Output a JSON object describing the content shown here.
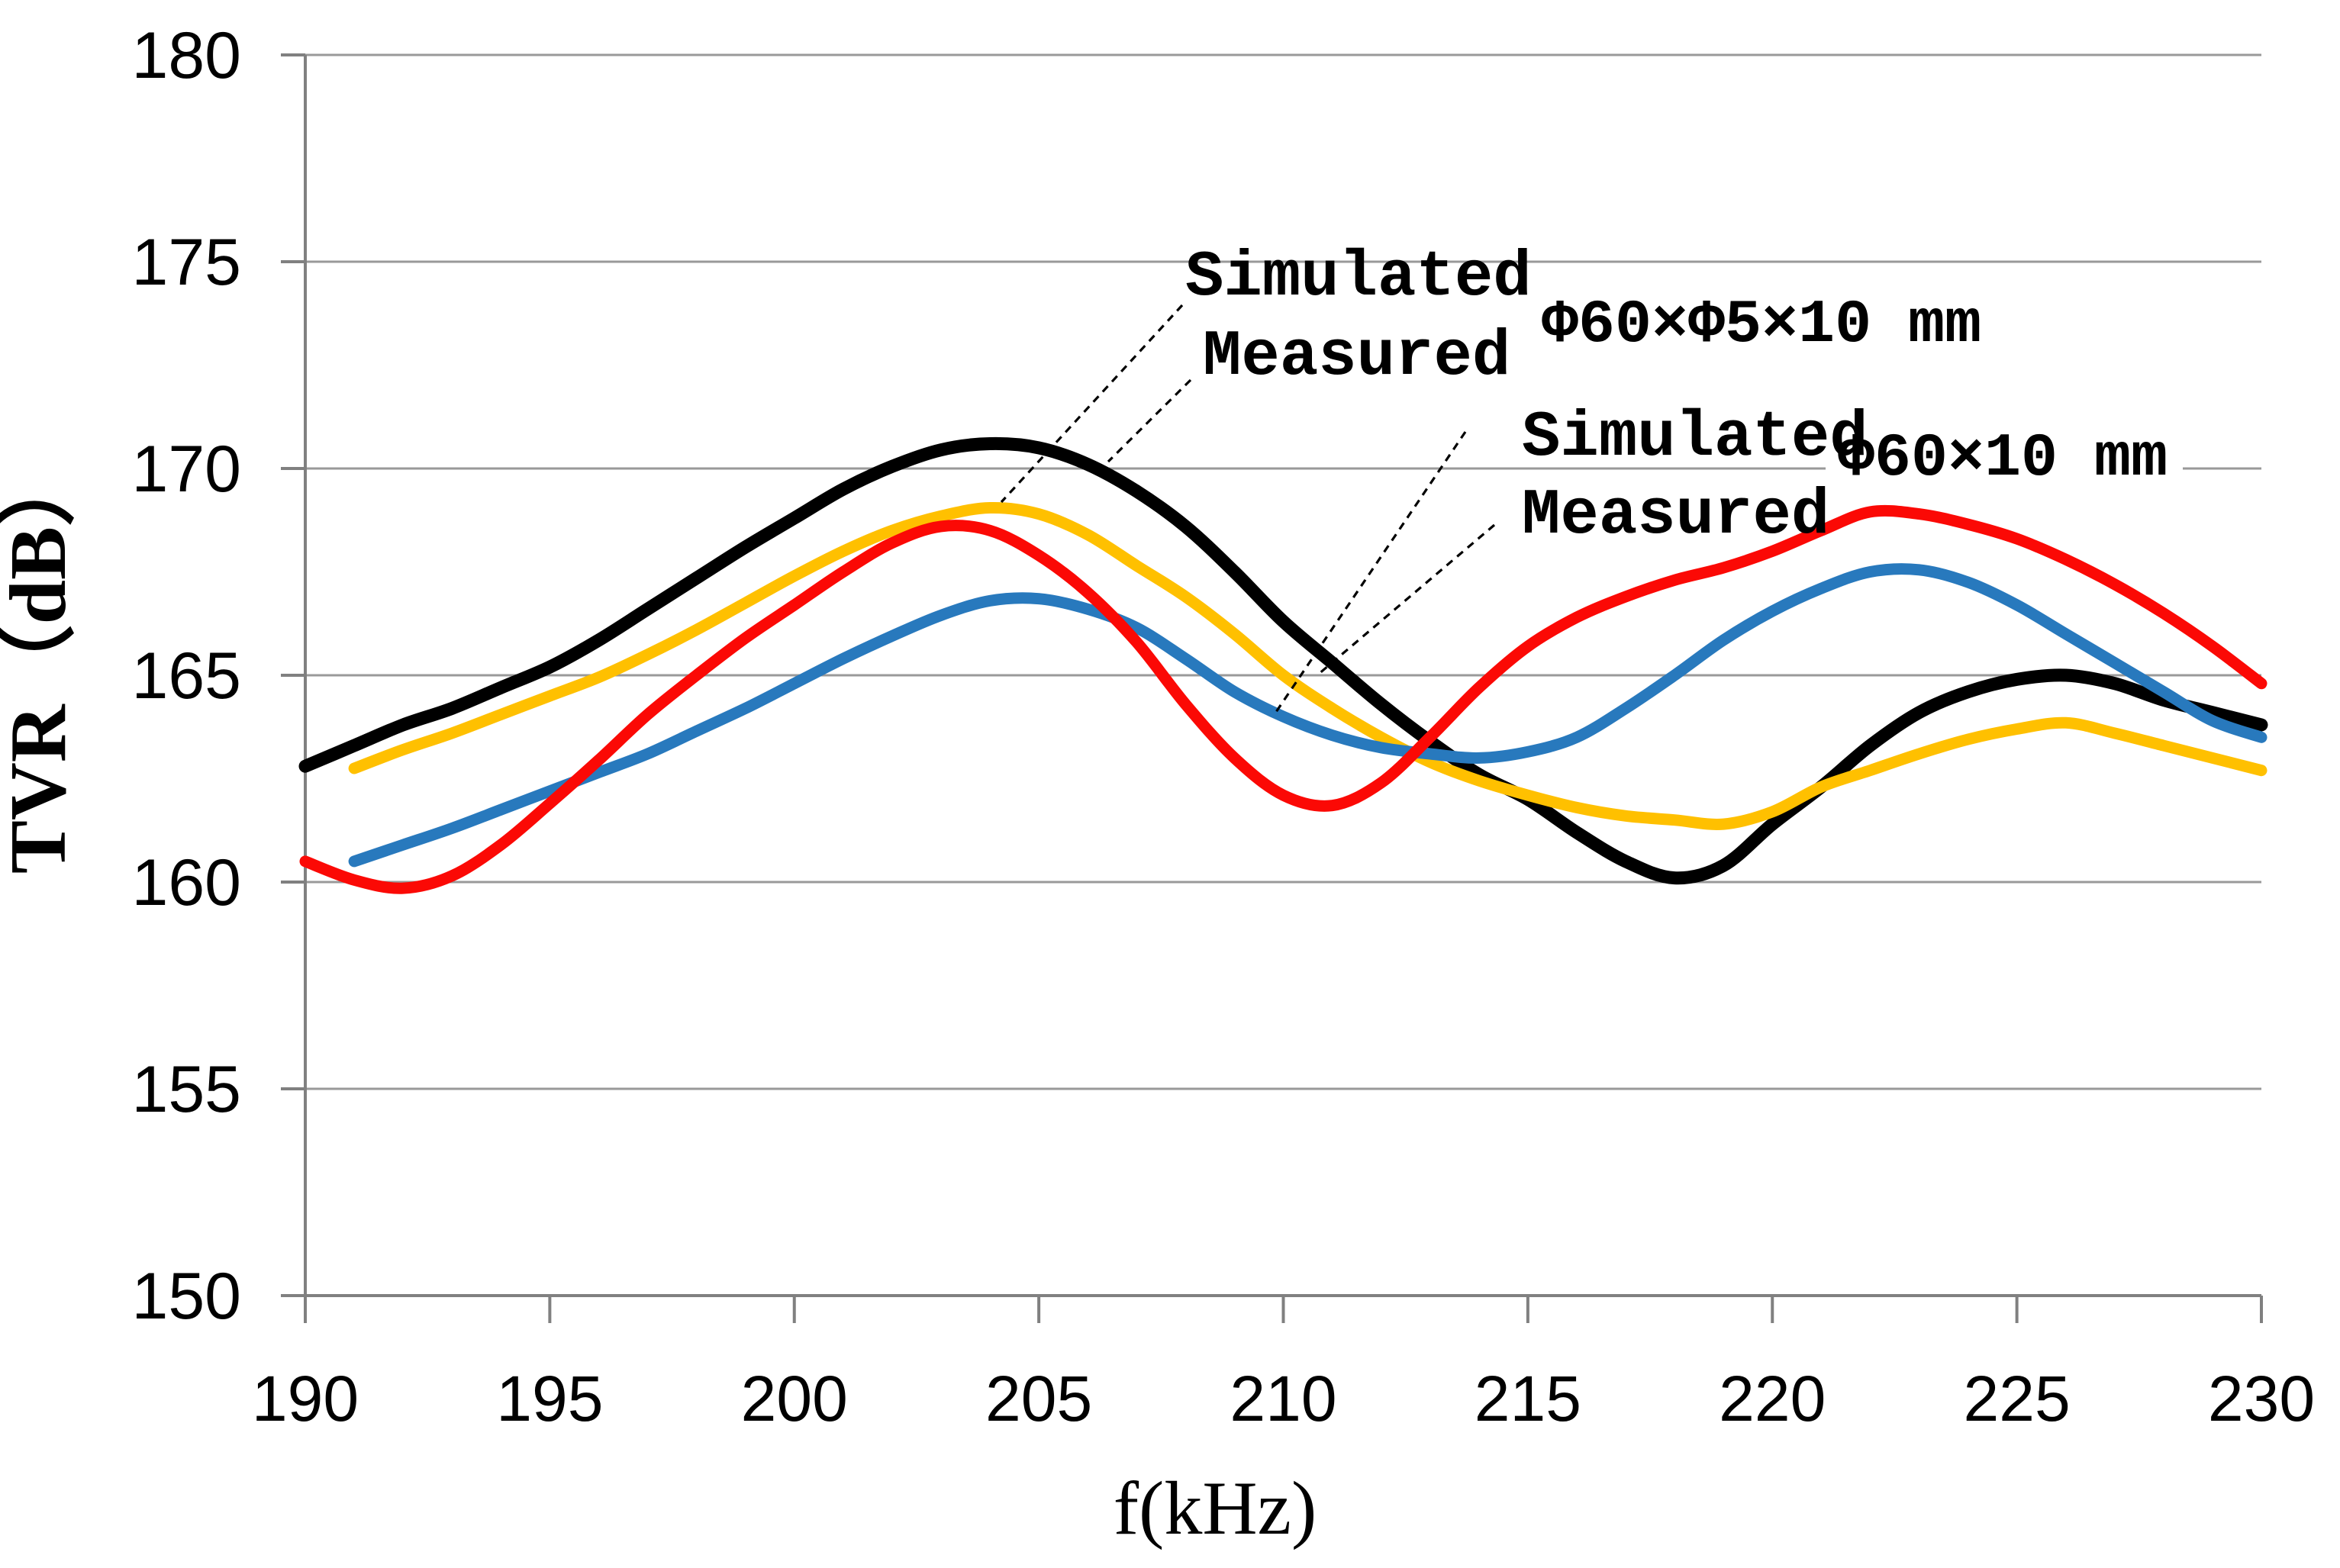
{
  "chart_data": {
    "type": "line",
    "title": "",
    "xlabel": "f(kHz)",
    "ylabel": "TVR（dB）",
    "xlim": [
      190,
      230
    ],
    "ylim": [
      150,
      180
    ],
    "x_ticks": [
      190,
      195,
      200,
      205,
      210,
      215,
      220,
      225,
      230
    ],
    "y_ticks": [
      150,
      155,
      160,
      165,
      170,
      175,
      180
    ],
    "grid": "horizontal-only",
    "legend_position": "inline-annotations",
    "background": "#ffffff",
    "grid_color": "#999999",
    "axis_color": "#808080",
    "series": [
      {
        "name": "Simulated Φ60×Φ5×10 mm",
        "color": "#000000",
        "stroke_width": 17,
        "points": [
          [
            190,
            162.8
          ],
          [
            191,
            163.3
          ],
          [
            192,
            163.8
          ],
          [
            193,
            164.2
          ],
          [
            194,
            164.7
          ],
          [
            195,
            165.2
          ],
          [
            196,
            165.85
          ],
          [
            197,
            166.6
          ],
          [
            198,
            167.35
          ],
          [
            199,
            168.1
          ],
          [
            200,
            168.8
          ],
          [
            201,
            169.5
          ],
          [
            202,
            170.05
          ],
          [
            203,
            170.45
          ],
          [
            204,
            170.6
          ],
          [
            205,
            170.5
          ],
          [
            206,
            170.1
          ],
          [
            207,
            169.45
          ],
          [
            208,
            168.6
          ],
          [
            209,
            167.5
          ],
          [
            210,
            166.3
          ],
          [
            211,
            165.3
          ],
          [
            212,
            164.3
          ],
          [
            213,
            163.4
          ],
          [
            214,
            162.6
          ],
          [
            215,
            162.0
          ],
          [
            216,
            161.2
          ],
          [
            217,
            160.5
          ],
          [
            218,
            160.1
          ],
          [
            219,
            160.4
          ],
          [
            220,
            161.4
          ],
          [
            221,
            162.3
          ],
          [
            222,
            163.3
          ],
          [
            223,
            164.1
          ],
          [
            224,
            164.6
          ],
          [
            225,
            164.9
          ],
          [
            226,
            165.0
          ],
          [
            227,
            164.8
          ],
          [
            228,
            164.4
          ],
          [
            229,
            164.1
          ],
          [
            230,
            163.8
          ]
        ]
      },
      {
        "name": "Measured Φ60×Φ5×10 mm",
        "color": "#FFC000",
        "stroke_width": 15,
        "points": [
          [
            191,
            162.75
          ],
          [
            192,
            163.2
          ],
          [
            193,
            163.6
          ],
          [
            194,
            164.05
          ],
          [
            195,
            164.5
          ],
          [
            196,
            164.95
          ],
          [
            197,
            165.5
          ],
          [
            198,
            166.1
          ],
          [
            199,
            166.75
          ],
          [
            200,
            167.4
          ],
          [
            201,
            168.0
          ],
          [
            202,
            168.5
          ],
          [
            203,
            168.85
          ],
          [
            204,
            169.05
          ],
          [
            205,
            168.9
          ],
          [
            206,
            168.4
          ],
          [
            207,
            167.65
          ],
          [
            208,
            166.9
          ],
          [
            209,
            166.0
          ],
          [
            210,
            165.0
          ],
          [
            211,
            164.2
          ],
          [
            212,
            163.5
          ],
          [
            213,
            162.9
          ],
          [
            214,
            162.45
          ],
          [
            215,
            162.1
          ],
          [
            216,
            161.8
          ],
          [
            217,
            161.6
          ],
          [
            218,
            161.5
          ],
          [
            219,
            161.4
          ],
          [
            220,
            161.7
          ],
          [
            221,
            162.3
          ],
          [
            222,
            162.7
          ],
          [
            223,
            163.1
          ],
          [
            224,
            163.45
          ],
          [
            225,
            163.7
          ],
          [
            226,
            163.85
          ],
          [
            227,
            163.6
          ],
          [
            228,
            163.3
          ],
          [
            229,
            163.0
          ],
          [
            230,
            162.7
          ]
        ]
      },
      {
        "name": "Simulated Φ60×10 mm",
        "color": "#2879BD",
        "stroke_width": 15,
        "points": [
          [
            191,
            160.5
          ],
          [
            192,
            160.9
          ],
          [
            193,
            161.3
          ],
          [
            194,
            161.75
          ],
          [
            195,
            162.2
          ],
          [
            196,
            162.65
          ],
          [
            197,
            163.1
          ],
          [
            198,
            163.65
          ],
          [
            199,
            164.2
          ],
          [
            200,
            164.8
          ],
          [
            201,
            165.4
          ],
          [
            202,
            165.95
          ],
          [
            203,
            166.45
          ],
          [
            204,
            166.8
          ],
          [
            205,
            166.85
          ],
          [
            206,
            166.6
          ],
          [
            207,
            166.15
          ],
          [
            208,
            165.4
          ],
          [
            209,
            164.6
          ],
          [
            210,
            164.0
          ],
          [
            211,
            163.55
          ],
          [
            212,
            163.25
          ],
          [
            213,
            163.1
          ],
          [
            214,
            163.0
          ],
          [
            215,
            163.15
          ],
          [
            216,
            163.5
          ],
          [
            217,
            164.2
          ],
          [
            218,
            165.0
          ],
          [
            219,
            165.85
          ],
          [
            220,
            166.55
          ],
          [
            221,
            167.1
          ],
          [
            222,
            167.5
          ],
          [
            223,
            167.55
          ],
          [
            224,
            167.25
          ],
          [
            225,
            166.7
          ],
          [
            226,
            166.0
          ],
          [
            227,
            165.3
          ],
          [
            228,
            164.6
          ],
          [
            229,
            163.9
          ],
          [
            230,
            163.5
          ]
        ]
      },
      {
        "name": "Measured Φ60×10 mm",
        "color": "#FB0905",
        "stroke_width": 15,
        "points": [
          [
            190,
            160.5
          ],
          [
            191,
            160.05
          ],
          [
            192,
            159.85
          ],
          [
            193,
            160.15
          ],
          [
            194,
            160.9
          ],
          [
            195,
            161.9
          ],
          [
            196,
            162.95
          ],
          [
            197,
            164.05
          ],
          [
            198,
            165.0
          ],
          [
            199,
            165.9
          ],
          [
            200,
            166.7
          ],
          [
            201,
            167.5
          ],
          [
            202,
            168.2
          ],
          [
            203,
            168.6
          ],
          [
            204,
            168.5
          ],
          [
            205,
            167.9
          ],
          [
            206,
            167.0
          ],
          [
            207,
            165.8
          ],
          [
            208,
            164.3
          ],
          [
            209,
            163.0
          ],
          [
            210,
            162.1
          ],
          [
            211,
            161.85
          ],
          [
            212,
            162.4
          ],
          [
            213,
            163.5
          ],
          [
            214,
            164.7
          ],
          [
            215,
            165.7
          ],
          [
            216,
            166.4
          ],
          [
            217,
            166.9
          ],
          [
            218,
            167.3
          ],
          [
            219,
            167.6
          ],
          [
            220,
            168.0
          ],
          [
            221,
            168.5
          ],
          [
            222,
            168.95
          ],
          [
            223,
            168.9
          ],
          [
            224,
            168.65
          ],
          [
            225,
            168.3
          ],
          [
            226,
            167.8
          ],
          [
            227,
            167.2
          ],
          [
            228,
            166.5
          ],
          [
            229,
            165.7
          ],
          [
            230,
            164.8
          ]
        ]
      }
    ],
    "annotations": {
      "group1": {
        "line1": "Simulated",
        "line2": "Measured",
        "size_label": "Φ60×Φ5×10 mm"
      },
      "group2": {
        "line1": "Simulated",
        "line2": "Measured",
        "size_label": "Φ60×10 mm"
      }
    }
  }
}
